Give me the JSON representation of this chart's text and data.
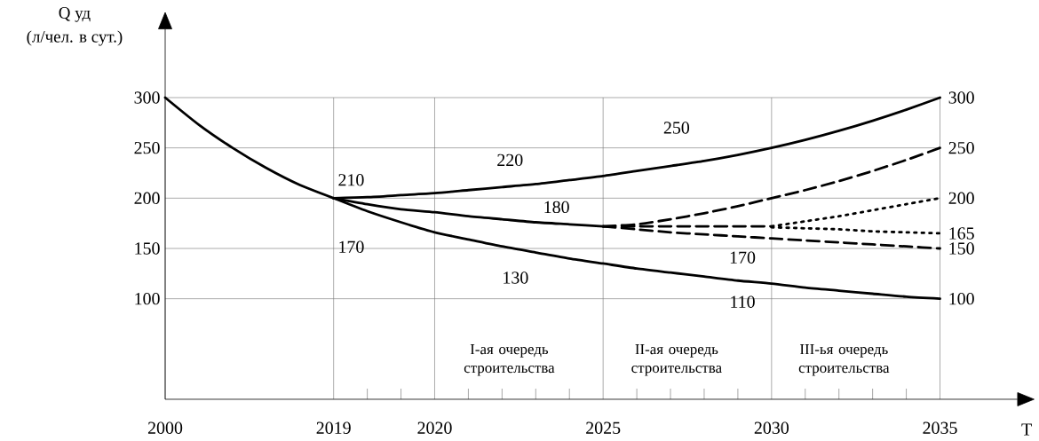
{
  "chart_data": {
    "type": "line",
    "ylabel": "Q уд (л/чел. в сут.)",
    "xlabel": "T",
    "categories": [
      "2000",
      null,
      null,
      null,
      null,
      "2019",
      null,
      null,
      "2020",
      null,
      null,
      null,
      null,
      "2025",
      null,
      null,
      null,
      null,
      "2030",
      null,
      null,
      null,
      null,
      "2035"
    ],
    "ylim": [
      0,
      300
    ],
    "yticks": [
      100,
      150,
      200,
      250,
      300
    ],
    "grid": true,
    "marker": "none",
    "series": [
      {
        "color": "#000000",
        "line_style": "solid",
        "values": [
          300,
          273,
          250,
          230,
          213,
          200,
          null,
          null,
          null,
          null,
          null,
          null,
          null,
          null,
          null,
          null,
          null,
          null,
          null,
          null,
          null,
          null,
          null,
          null
        ]
      },
      {
        "color": "#000000",
        "line_style": "solid",
        "values": [
          null,
          null,
          null,
          null,
          null,
          200,
          201,
          203,
          205,
          208,
          211,
          214,
          218,
          222,
          227,
          232,
          237,
          243,
          250,
          258,
          267,
          277,
          288,
          300
        ]
      },
      {
        "color": "#000000",
        "line_style": "solid",
        "values": [
          null,
          null,
          null,
          null,
          null,
          200,
          194,
          189,
          186,
          182,
          179,
          176,
          174,
          172,
          null,
          null,
          null,
          null,
          null,
          null,
          null,
          null,
          null,
          null
        ]
      },
      {
        "color": "#000000",
        "line_style": "solid",
        "values": [
          null,
          null,
          null,
          null,
          null,
          200,
          187,
          176,
          166,
          159,
          152,
          146,
          140,
          135,
          130,
          126,
          122,
          118,
          115,
          111,
          108,
          105,
          102,
          100
        ]
      },
      {
        "color": "#000000",
        "line_style": "dashed",
        "values": [
          null,
          null,
          null,
          null,
          null,
          null,
          null,
          null,
          null,
          null,
          null,
          null,
          null,
          172,
          174,
          179,
          185,
          192,
          200,
          208,
          217,
          227,
          238,
          250
        ]
      },
      {
        "color": "#000000",
        "line_style": "dashed",
        "values": [
          null,
          null,
          null,
          null,
          null,
          null,
          null,
          null,
          null,
          null,
          null,
          null,
          null,
          172,
          172,
          172,
          172,
          172,
          172,
          null,
          null,
          null,
          null,
          null
        ]
      },
      {
        "color": "#000000",
        "line_style": "dotted",
        "values": [
          null,
          null,
          null,
          null,
          null,
          null,
          null,
          null,
          null,
          null,
          null,
          null,
          null,
          null,
          null,
          null,
          null,
          null,
          172,
          177,
          182,
          188,
          194,
          200
        ]
      },
      {
        "color": "#000000",
        "line_style": "dotted",
        "values": [
          null,
          null,
          null,
          null,
          null,
          null,
          null,
          null,
          null,
          null,
          null,
          null,
          null,
          null,
          null,
          null,
          null,
          null,
          171,
          170,
          169,
          167,
          166,
          165
        ]
      },
      {
        "color": "#000000",
        "line_style": "dashed",
        "values": [
          null,
          null,
          null,
          null,
          null,
          null,
          null,
          null,
          null,
          null,
          null,
          null,
          null,
          172,
          169,
          166,
          164,
          162,
          160,
          158,
          156,
          154,
          152,
          150
        ]
      }
    ],
    "annotations": [
      "210",
      "220",
      "250",
      "180",
      "170",
      "170",
      "130",
      "110",
      {
        "text": "300",
        "x": "2035",
        "y": 300
      },
      {
        "text": "250",
        "x": "2035",
        "y": 250
      },
      {
        "text": "200",
        "x": "2035",
        "y": 200
      },
      {
        "text": "165",
        "x": "2035",
        "y": 165
      },
      {
        "text": "150",
        "x": "2035",
        "y": 150
      },
      {
        "text": "100",
        "x": "2035",
        "y": 100
      },
      "I-ая очередь строительства",
      "II-ая очередь строительства",
      "III-ья очередь строительства"
    ]
  }
}
